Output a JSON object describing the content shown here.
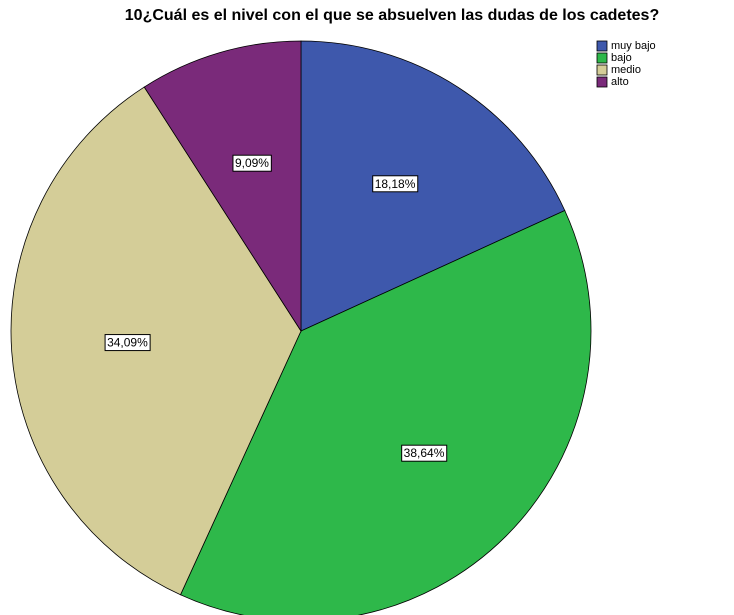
{
  "chart_data": {
    "type": "pie",
    "title": "10¿Cuál es el nivel con el que se absuelven las dudas de los cadetes?",
    "categories": [
      "muy bajo",
      "bajo",
      "medio",
      "alto"
    ],
    "values": [
      18.18,
      38.64,
      34.09,
      9.09
    ],
    "value_labels": [
      "18,18%",
      "38,64%",
      "34,09%",
      "9,09%"
    ],
    "colors": [
      "#3e58ac",
      "#2eb84a",
      "#d4cd98",
      "#7a2a7a"
    ],
    "legend": "top-right"
  }
}
